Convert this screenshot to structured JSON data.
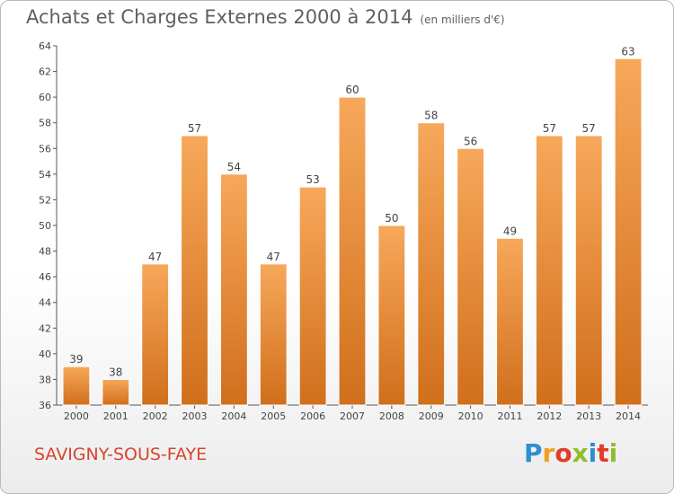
{
  "header": {
    "title": "Achats et Charges Externes 2000 à 2014",
    "subtitle": "(en milliers d'€)"
  },
  "footer": {
    "commune": "SAVIGNY-SOUS-FAYE",
    "logo_letters": [
      "P",
      "r",
      "o",
      "x",
      "i",
      "t",
      "i"
    ],
    "logo_colors": [
      "#2e8fd0",
      "#f0a020",
      "#e03c28",
      "#8fbf2a",
      "#2e8fd0",
      "#e03c28",
      "#8fbf2a"
    ]
  },
  "colors": {
    "bar": "#e8842e",
    "bar_light": "#f7a85a",
    "bar_dark": "#d06f1c",
    "axis": "#555555",
    "grid": "#dddddd"
  },
  "chart_data": {
    "type": "bar",
    "title": "Achats et Charges Externes 2000 à 2014",
    "subtitle": "(en milliers d'€)",
    "xlabel": "",
    "ylabel": "",
    "categories": [
      "2000",
      "2001",
      "2002",
      "2003",
      "2004",
      "2005",
      "2006",
      "2007",
      "2008",
      "2009",
      "2010",
      "2011",
      "2012",
      "2013",
      "2014"
    ],
    "values": [
      39,
      38,
      47,
      57,
      54,
      47,
      53,
      60,
      50,
      58,
      56,
      49,
      57,
      57,
      63
    ],
    "ylim": [
      36,
      64
    ],
    "yticks": [
      36,
      38,
      40,
      42,
      44,
      46,
      48,
      50,
      52,
      54,
      56,
      58,
      60,
      62,
      64
    ],
    "grid": false,
    "data_labels": true
  }
}
